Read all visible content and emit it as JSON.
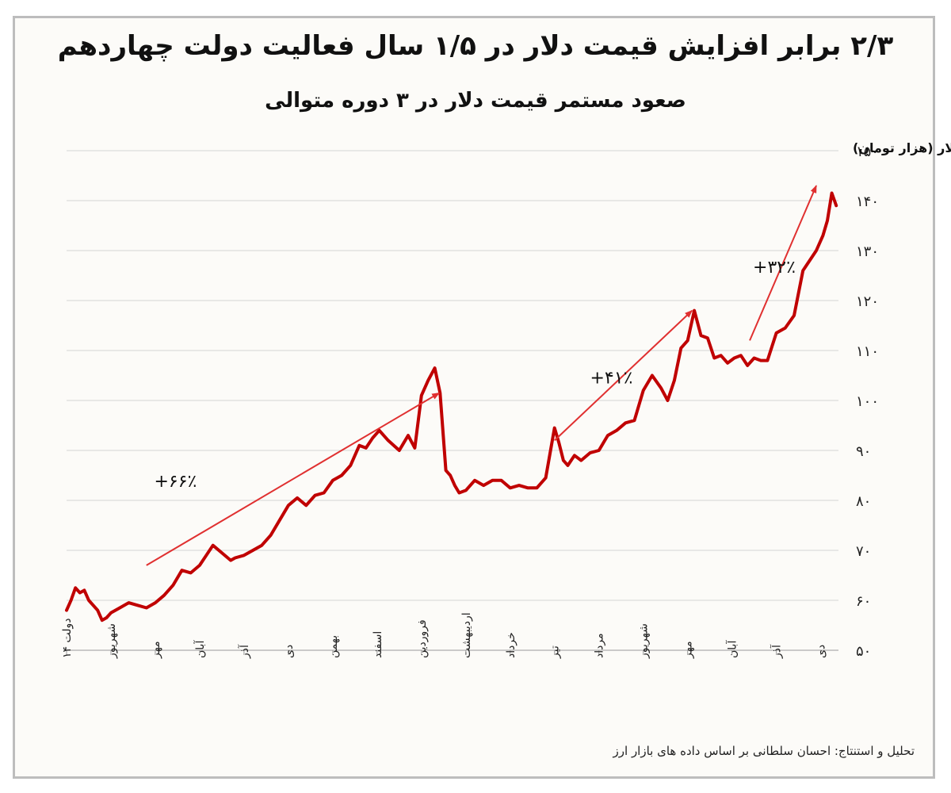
{
  "chart_data": {
    "type": "line",
    "title": "۲/۳ برابر افزایش قیمت دلار در ۱/۵ سال فعالیت دولت چهاردهم",
    "subtitle": "صعود مستمر قیمت دلار در ۳ دوره متوالی",
    "ylabel": "قیمت دلار (هزار تومان)",
    "ylim": [
      50,
      150
    ],
    "yticks": [
      50,
      60,
      70,
      80,
      90,
      100,
      110,
      120,
      130,
      140,
      150
    ],
    "ytick_labels": [
      "۵۰",
      "۶۰",
      "۷۰",
      "۸۰",
      "۹۰",
      "۱۰۰",
      "۱۱۰",
      "۱۲۰",
      "۱۳۰",
      "۱۴۰",
      "۱۵۰"
    ],
    "grid": true,
    "x_categories": [
      "دولت ۱۴",
      "شهریور",
      "مهر",
      "آبان",
      "آذر",
      "دی",
      "بهمن",
      "اسفند",
      "فروردین",
      "اردیبهشت",
      "خرداد",
      "تیر",
      "مرداد",
      "شهریور",
      "مهر",
      "آبان",
      "آذر",
      "دی"
    ],
    "x_positions": [
      0,
      1,
      2,
      3,
      4,
      5,
      6,
      7,
      8,
      9,
      10,
      11,
      12,
      13,
      14,
      15,
      16,
      17
    ],
    "xlim": [
      0,
      17.4
    ],
    "series": [
      {
        "color": "#c00000",
        "x": [
          0,
          0.1,
          0.2,
          0.3,
          0.4,
          0.5,
          0.6,
          0.7,
          0.8,
          0.9,
          1.0,
          1.2,
          1.4,
          1.6,
          1.8,
          2.0,
          2.2,
          2.4,
          2.6,
          2.8,
          3.0,
          3.15,
          3.3,
          3.5,
          3.7,
          3.8,
          4.0,
          4.2,
          4.4,
          4.6,
          4.8,
          5.0,
          5.2,
          5.4,
          5.6,
          5.8,
          6.0,
          6.2,
          6.4,
          6.6,
          6.75,
          6.9,
          7.05,
          7.25,
          7.5,
          7.7,
          7.85,
          8.0,
          8.15,
          8.3,
          8.42,
          8.55,
          8.65,
          8.75,
          8.85,
          9.0,
          9.2,
          9.4,
          9.6,
          9.8,
          10.0,
          10.2,
          10.4,
          10.6,
          10.8,
          11.0,
          11.1,
          11.2,
          11.3,
          11.45,
          11.6,
          11.8,
          12.0,
          12.2,
          12.4,
          12.6,
          12.8,
          13.0,
          13.2,
          13.4,
          13.55,
          13.7,
          13.85,
          14.0,
          14.15,
          14.3,
          14.45,
          14.6,
          14.75,
          14.9,
          15.05,
          15.2,
          15.35,
          15.5,
          15.65,
          15.8,
          16.0,
          16.2,
          16.4,
          16.6,
          16.75,
          16.9,
          17.05,
          17.15,
          17.25,
          17.35
        ],
        "y": [
          58,
          60,
          62.5,
          61.5,
          62,
          60,
          59,
          58,
          56,
          56.5,
          57.5,
          58.5,
          59.5,
          59,
          58.5,
          59.5,
          61,
          63,
          66,
          65.5,
          67,
          69,
          71,
          69.5,
          68,
          68.5,
          69,
          70,
          71,
          73,
          76,
          79,
          80.5,
          79,
          81,
          81.5,
          84,
          85,
          87,
          91,
          90.5,
          92.5,
          94,
          92,
          90,
          93,
          90.5,
          101,
          104,
          106.5,
          101.5,
          86,
          85,
          83,
          81.5,
          82,
          84,
          83,
          84,
          84,
          82.5,
          83,
          82.5,
          82.5,
          84.5,
          94.5,
          91.5,
          88,
          87,
          89,
          88,
          89.5,
          90,
          93,
          94,
          95.5,
          96,
          102,
          105,
          102.5,
          100,
          104,
          110.5,
          112,
          118,
          113,
          112.5,
          108.5,
          109,
          107.5,
          108.5,
          109,
          107,
          108.5,
          108,
          108,
          113.5,
          114.5,
          117,
          126,
          128,
          130,
          133,
          136,
          141.5,
          139
        ]
      }
    ],
    "annotations": [
      {
        "text": "+۶۶٪",
        "from_x": 1.8,
        "from_y": 67,
        "to_x": 8.4,
        "to_y": 101.5
      },
      {
        "text": "+۴۱٪",
        "from_x": 11.0,
        "from_y": 92,
        "to_x": 14.1,
        "to_y": 118
      },
      {
        "text": "+۳۲٪",
        "from_x": 15.4,
        "from_y": 112,
        "to_x": 16.9,
        "to_y": 143
      }
    ]
  },
  "footer": {
    "credit": "تحلیل و استنتاج: احسان سلطانی بر اساس داده های بازار ارز"
  }
}
